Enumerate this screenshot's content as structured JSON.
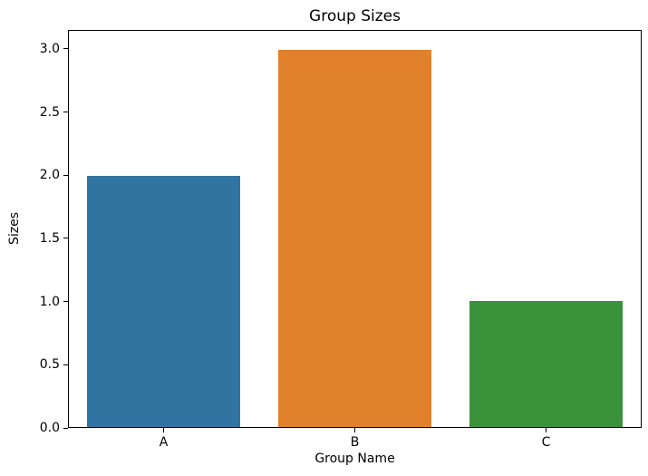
{
  "figure": {
    "background": "#ffffff",
    "text_color": "#000000",
    "spine_color": "#000000"
  },
  "chart_data": {
    "type": "bar",
    "title": "Group Sizes",
    "xlabel": "Group Name",
    "ylabel": "Sizes",
    "categories": [
      "A",
      "B",
      "C"
    ],
    "values": [
      2,
      3,
      1
    ],
    "bar_colors": [
      "#3274a1",
      "#e1812c",
      "#3a923a"
    ],
    "ylim": [
      0,
      3.15
    ],
    "yticks": [
      0.0,
      0.5,
      1.0,
      1.5,
      2.0,
      2.5,
      3.0
    ],
    "ytick_labels": [
      "0.0",
      "0.5",
      "1.0",
      "1.5",
      "2.0",
      "2.5",
      "3.0"
    ],
    "bar_width_fraction": 0.8,
    "grid": false,
    "legend": null
  }
}
